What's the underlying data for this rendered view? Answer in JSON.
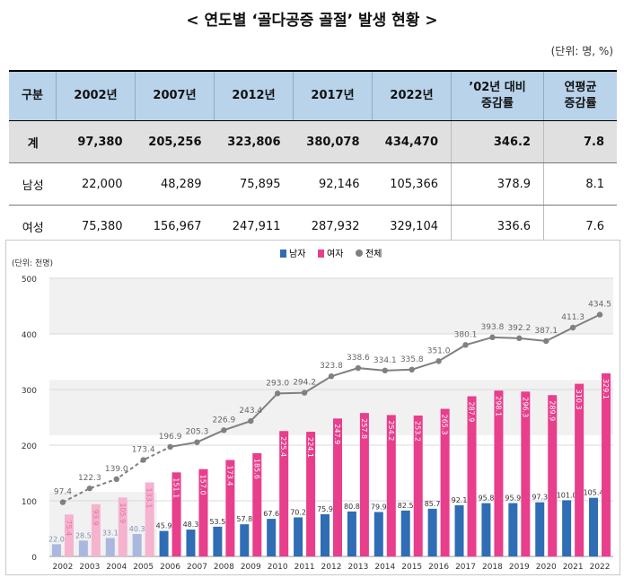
{
  "title": "< 연도별 ‘골다공증 골절’ 발생 현황 >",
  "unit": "(단위: 명, %)",
  "table": {
    "headers": [
      "구분",
      "2002년",
      "2007년",
      "2012년",
      "2017년",
      "2022년",
      "’02년 대비\n증감률",
      "연평균\n증감률"
    ],
    "rows": [
      [
        "계",
        "97,380",
        "205,256",
        "323,806",
        "380,078",
        "434,470",
        "346.2",
        "7.8"
      ],
      [
        "남성",
        "22,000",
        "48,289",
        "75,895",
        "92,146",
        "105,366",
        "378.9",
        "8.1"
      ],
      [
        "여성",
        "75,380",
        "156,967",
        "247,911",
        "287,932",
        "329,104",
        "336.6",
        "7.6"
      ]
    ]
  },
  "chart_data": {
    "type": "bar",
    "y_unit": "(단위: 천명)",
    "ylim": [
      0,
      500
    ],
    "yticks": [
      0,
      100,
      200,
      300,
      400,
      500
    ],
    "categories": [
      "2002",
      "2003",
      "2004",
      "2005",
      "2006",
      "2007",
      "2008",
      "2009",
      "2010",
      "2011",
      "2012",
      "2013",
      "2014",
      "2015",
      "2016",
      "2017",
      "2018",
      "2019",
      "2020",
      "2021",
      "2022"
    ],
    "legend_position": "top-center",
    "series": [
      {
        "name": "남자",
        "type": "bar",
        "color": "#2f6db5",
        "light_color": "#aab8de",
        "values": [
          22.0,
          28.5,
          33.1,
          40.3,
          45.9,
          48.3,
          53.5,
          57.8,
          67.6,
          70.2,
          75.9,
          80.8,
          79.9,
          82.5,
          85.7,
          92.1,
          95.8,
          95.9,
          97.3,
          101.0,
          105.4
        ]
      },
      {
        "name": "여자",
        "type": "bar",
        "color": "#e83e8c",
        "light_color": "#f5b3cf",
        "values": [
          75.4,
          93.9,
          105.9,
          133.1,
          151.1,
          157.0,
          173.4,
          185.6,
          225.4,
          224.1,
          247.9,
          257.8,
          254.2,
          253.2,
          265.3,
          287.9,
          298.1,
          296.3,
          289.9,
          310.3,
          329.1
        ]
      },
      {
        "name": "전체",
        "type": "line",
        "color": "#808080",
        "values": [
          97.4,
          122.3,
          139.0,
          173.4,
          196.9,
          205.3,
          226.9,
          243.4,
          293.0,
          294.2,
          323.8,
          338.6,
          334.1,
          335.8,
          351.0,
          380.1,
          393.8,
          392.2,
          387.1,
          411.3,
          434.5
        ]
      }
    ],
    "estimated_years": [
      "2002",
      "2003",
      "2004",
      "2005"
    ]
  }
}
